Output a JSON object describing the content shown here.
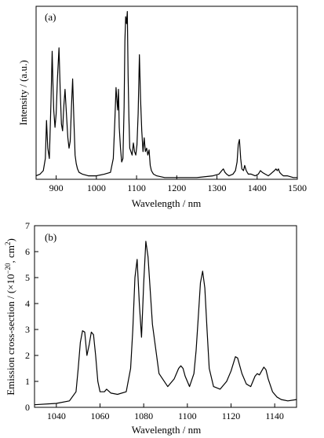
{
  "chart_data": [
    {
      "panel_label": "(a)",
      "type": "line",
      "xlabel": "Wavelength / nm",
      "ylabel": "Intensity / (a.u.)",
      "xlim": [
        850,
        1500
      ],
      "ylim": [
        0,
        1.0
      ],
      "xticks": [
        900,
        1000,
        1100,
        1200,
        1300,
        1400,
        1500
      ],
      "ytick_labels_shown": false,
      "series": [
        {
          "x": [
            850,
            860,
            868,
            873,
            876,
            879,
            883,
            887,
            890,
            892,
            894,
            897,
            900,
            903,
            907,
            910,
            913,
            916,
            919,
            922,
            926,
            929,
            932,
            935,
            938,
            941,
            944,
            947,
            950,
            953,
            957,
            965,
            980,
            1000,
            1020,
            1035,
            1042,
            1046,
            1049,
            1051,
            1053,
            1055,
            1057,
            1060,
            1063,
            1066,
            1069,
            1071,
            1073,
            1075,
            1077,
            1079,
            1081,
            1083,
            1086,
            1089,
            1092,
            1095,
            1098,
            1101,
            1104,
            1107,
            1110,
            1113,
            1116,
            1119,
            1122,
            1125,
            1128,
            1131,
            1134,
            1137,
            1142,
            1150,
            1170,
            1200,
            1250,
            1290,
            1305,
            1312,
            1316,
            1320,
            1324,
            1330,
            1340,
            1346,
            1350,
            1353,
            1356,
            1359,
            1362,
            1366,
            1369,
            1373,
            1378,
            1385,
            1395,
            1403,
            1408,
            1413,
            1420,
            1428,
            1433,
            1438,
            1443,
            1447,
            1450,
            1453,
            1456,
            1460,
            1465,
            1475,
            1490,
            1500
          ],
          "y": [
            0.02,
            0.03,
            0.05,
            0.12,
            0.34,
            0.18,
            0.12,
            0.45,
            0.74,
            0.55,
            0.4,
            0.3,
            0.38,
            0.58,
            0.76,
            0.52,
            0.32,
            0.28,
            0.42,
            0.52,
            0.36,
            0.24,
            0.18,
            0.22,
            0.42,
            0.58,
            0.34,
            0.14,
            0.09,
            0.06,
            0.04,
            0.03,
            0.02,
            0.02,
            0.03,
            0.04,
            0.12,
            0.34,
            0.53,
            0.46,
            0.4,
            0.52,
            0.3,
            0.18,
            0.1,
            0.12,
            0.42,
            0.8,
            0.94,
            0.9,
            0.97,
            0.6,
            0.36,
            0.18,
            0.16,
            0.14,
            0.21,
            0.16,
            0.14,
            0.2,
            0.38,
            0.72,
            0.46,
            0.28,
            0.16,
            0.24,
            0.16,
            0.18,
            0.14,
            0.17,
            0.08,
            0.05,
            0.03,
            0.02,
            0.01,
            0.01,
            0.01,
            0.02,
            0.03,
            0.05,
            0.06,
            0.04,
            0.03,
            0.02,
            0.03,
            0.05,
            0.1,
            0.2,
            0.23,
            0.12,
            0.06,
            0.05,
            0.08,
            0.05,
            0.03,
            0.03,
            0.02,
            0.03,
            0.05,
            0.04,
            0.03,
            0.02,
            0.03,
            0.04,
            0.05,
            0.06,
            0.05,
            0.06,
            0.04,
            0.03,
            0.02,
            0.02,
            0.01,
            0.01
          ]
        }
      ]
    },
    {
      "panel_label": "(b)",
      "type": "line",
      "xlabel": "Wavelength / nm",
      "ylabel": "Emission cross-section / (×10",
      "ylabel_exponent": "−20",
      "ylabel_suffix": ", cm",
      "ylabel_unit_power": "2",
      "ylabel_close": ")",
      "xlim": [
        1030,
        1150
      ],
      "ylim": [
        0,
        7
      ],
      "xticks": [
        1040,
        1060,
        1080,
        1100,
        1120,
        1140
      ],
      "yticks": [
        0,
        1,
        2,
        3,
        4,
        5,
        6,
        7
      ],
      "series": [
        {
          "x": [
            1030,
            1040,
            1046,
            1049,
            1050,
            1051,
            1052,
            1053,
            1054,
            1055,
            1056,
            1057,
            1058,
            1059,
            1060,
            1062,
            1063,
            1065,
            1068,
            1072,
            1074,
            1075,
            1076,
            1077,
            1078,
            1079,
            1080,
            1081,
            1082,
            1084,
            1087,
            1091,
            1094,
            1096,
            1097,
            1098,
            1099,
            1101,
            1103,
            1104,
            1105,
            1106,
            1107,
            1108,
            1109,
            1110,
            1112,
            1115,
            1118,
            1120,
            1122,
            1123,
            1125,
            1127,
            1129,
            1131,
            1132,
            1133,
            1134,
            1135,
            1136,
            1137,
            1139,
            1141,
            1143,
            1146,
            1150
          ],
          "y": [
            0.1,
            0.15,
            0.25,
            0.6,
            1.5,
            2.5,
            2.95,
            2.9,
            2.0,
            2.4,
            2.9,
            2.8,
            2.0,
            1.0,
            0.6,
            0.6,
            0.7,
            0.55,
            0.5,
            0.6,
            1.5,
            3.0,
            5.0,
            5.7,
            4.0,
            2.7,
            4.8,
            6.4,
            5.8,
            3.2,
            1.3,
            0.8,
            1.1,
            1.5,
            1.6,
            1.5,
            1.2,
            0.8,
            1.3,
            2.2,
            3.5,
            4.8,
            5.25,
            4.6,
            3.0,
            1.5,
            0.8,
            0.7,
            1.0,
            1.4,
            1.95,
            1.9,
            1.3,
            0.9,
            0.8,
            1.2,
            1.3,
            1.25,
            1.4,
            1.55,
            1.45,
            1.1,
            0.6,
            0.4,
            0.3,
            0.25,
            0.3
          ]
        }
      ]
    }
  ]
}
